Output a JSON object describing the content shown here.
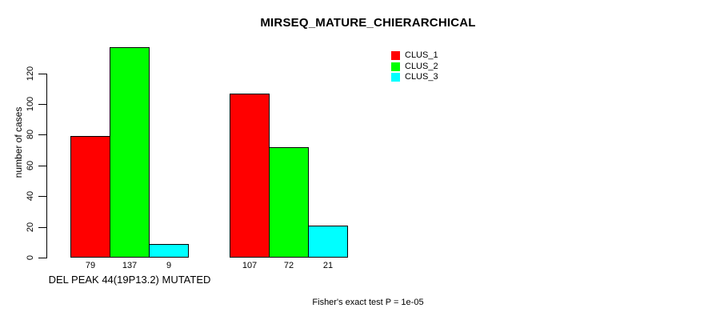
{
  "chart_data": {
    "type": "bar",
    "title": "MIRSEQ_MATURE_CHIERARCHICAL",
    "ylabel": "number of cases",
    "xlabel": "",
    "yticks": [
      0,
      20,
      40,
      60,
      80,
      100,
      120
    ],
    "ylim": [
      0,
      137
    ],
    "grid": false,
    "legend_position": "top-right-inside",
    "series": [
      {
        "name": "CLUS_1",
        "color": "#FF0000",
        "values": [
          79,
          107
        ]
      },
      {
        "name": "CLUS_2",
        "color": "#00FF00",
        "values": [
          137,
          72
        ]
      },
      {
        "name": "CLUS_3",
        "color": "#00FFFF",
        "values": [
          9,
          21
        ]
      }
    ],
    "groups": [
      {
        "label": "DEL PEAK 44(19P13.2) MUTATED",
        "values": [
          79,
          137,
          9
        ],
        "value_labels": [
          "79",
          "137",
          "9"
        ]
      },
      {
        "label": "",
        "values": [
          107,
          72,
          21
        ],
        "value_labels": [
          "107",
          "72",
          "21"
        ]
      }
    ],
    "bar_colors": [
      "#FF0000",
      "#00FF00",
      "#00FFFF"
    ],
    "bar_outline_color": "#000000",
    "annotation": "Fisher's exact test P = 1e-05",
    "background_color": "#FFFFFF",
    "text_color": "#000000"
  }
}
